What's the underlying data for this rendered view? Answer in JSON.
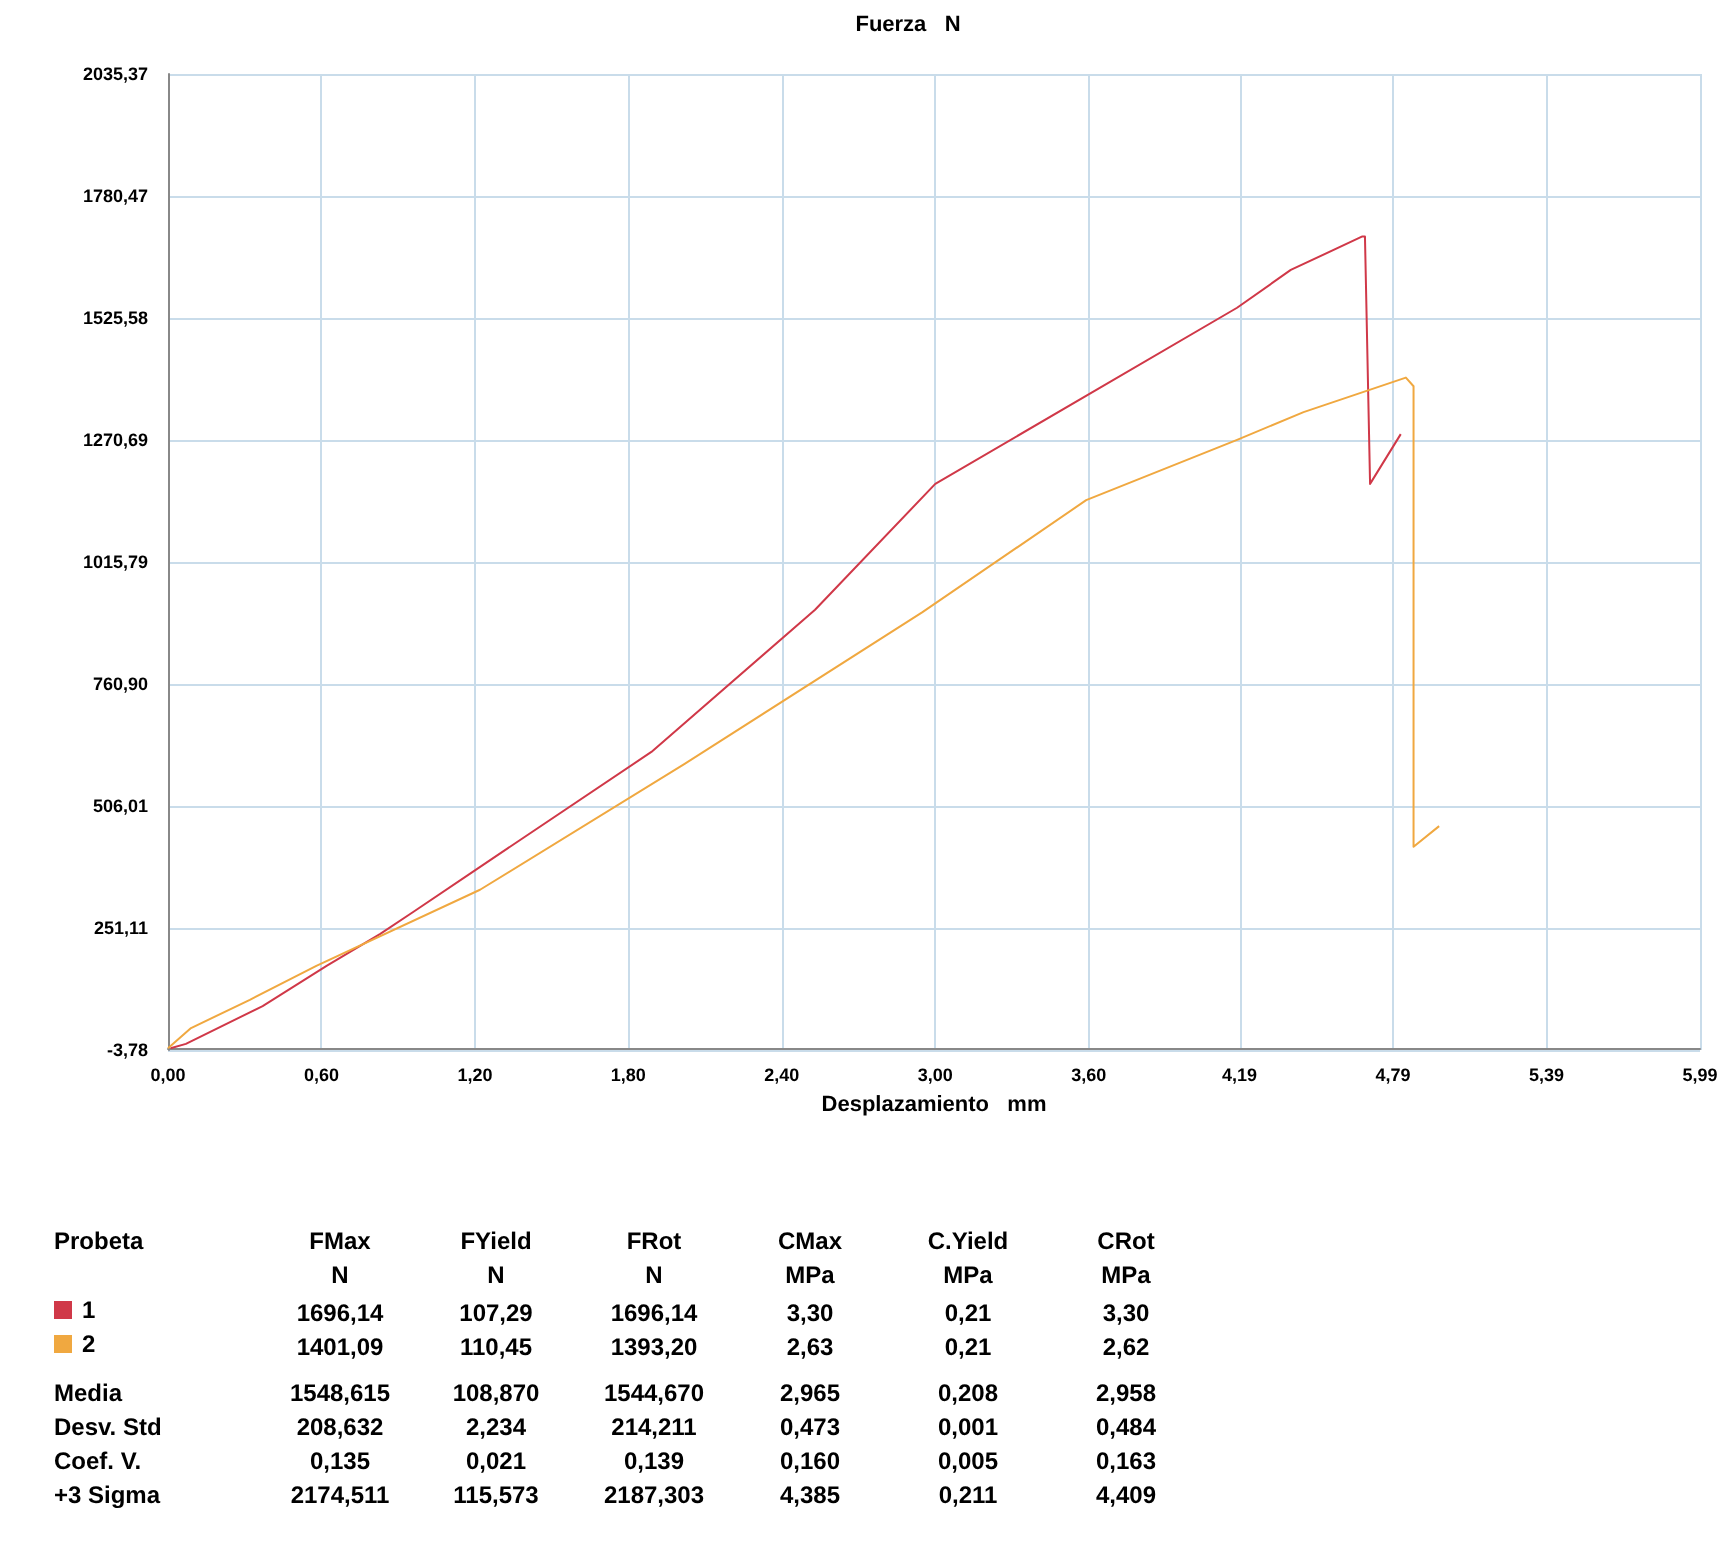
{
  "chart_data": {
    "type": "line",
    "title": "Fuerza   N",
    "xlabel": "Desplazamiento   mm",
    "xlim": [
      0,
      5.99
    ],
    "ylim": [
      -3.78,
      2035.37
    ],
    "xticks": [
      {
        "value": 0,
        "label": "0,00"
      },
      {
        "value": 0.6,
        "label": "0,60"
      },
      {
        "value": 1.2,
        "label": "1,20"
      },
      {
        "value": 1.8,
        "label": "1,80"
      },
      {
        "value": 2.4,
        "label": "2,40"
      },
      {
        "value": 3.0,
        "label": "3,00"
      },
      {
        "value": 3.6,
        "label": "3,60"
      },
      {
        "value": 4.19,
        "label": "4,19"
      },
      {
        "value": 4.79,
        "label": "4,79"
      },
      {
        "value": 5.39,
        "label": "5,39"
      },
      {
        "value": 5.99,
        "label": "5,99"
      }
    ],
    "yticks": [
      {
        "value": -3.78,
        "label": "-3,78"
      },
      {
        "value": 251.11,
        "label": "251,11"
      },
      {
        "value": 506.01,
        "label": "506,01"
      },
      {
        "value": 760.9,
        "label": "760,90"
      },
      {
        "value": 1015.79,
        "label": "1015,79"
      },
      {
        "value": 1270.69,
        "label": "1270,69"
      },
      {
        "value": 1525.58,
        "label": "1525,58"
      },
      {
        "value": 1780.47,
        "label": "1780,47"
      },
      {
        "value": 2035.37,
        "label": "2035,37"
      }
    ],
    "grid": true,
    "legend": "bottom",
    "series": [
      {
        "name": "1",
        "color": "#d03848",
        "x": [
          0.01,
          0.07,
          0.37,
          0.62,
          0.83,
          0.96,
          1.19,
          1.89,
          2.53,
          3.0,
          4.18,
          4.39,
          4.67,
          4.68,
          4.7,
          4.82
        ],
        "values": [
          0,
          9,
          88,
          172,
          239,
          285,
          368,
          619,
          916,
          1179,
          1547,
          1626,
          1696,
          1696,
          1179,
          1283
        ]
      },
      {
        "name": "2",
        "color": "#f0a840",
        "x": [
          0,
          0.09,
          0.32,
          0.58,
          1.22,
          2.02,
          2.95,
          3.59,
          4.18,
          4.44,
          4.84,
          4.87,
          4.87,
          4.97
        ],
        "values": [
          0,
          42,
          101,
          172,
          331,
          594,
          911,
          1145,
          1271,
          1329,
          1401,
          1383,
          421,
          464
        ]
      }
    ],
    "annotations": [
      "Probeta",
      "FMax\nN",
      "FYield\nN",
      "FRot\nN",
      "CMax\nMPa",
      "C.Yield\nMPa",
      "CRot\nMPa",
      "1696,14",
      "107,29",
      "1696,14",
      "3,30",
      "0,21",
      "3,30",
      "1401,09",
      "110,45",
      "1393,20",
      "2,63",
      "0,21",
      "2,62",
      "Media",
      "1548,615",
      "108,870",
      "1544,670",
      "2,965",
      "0,208",
      "2,958",
      "Desv. Std",
      "208,632",
      "2,234",
      "214,211",
      "0,473",
      "0,001",
      "0,484",
      "Coef. V.",
      "0,135",
      "0,021",
      "0,139",
      "0,160",
      "0,005",
      "0,163",
      "+3 Sigma",
      "2174,511",
      "115,573",
      "2187,303",
      "4,385",
      "0,211",
      "4,409"
    ]
  }
}
